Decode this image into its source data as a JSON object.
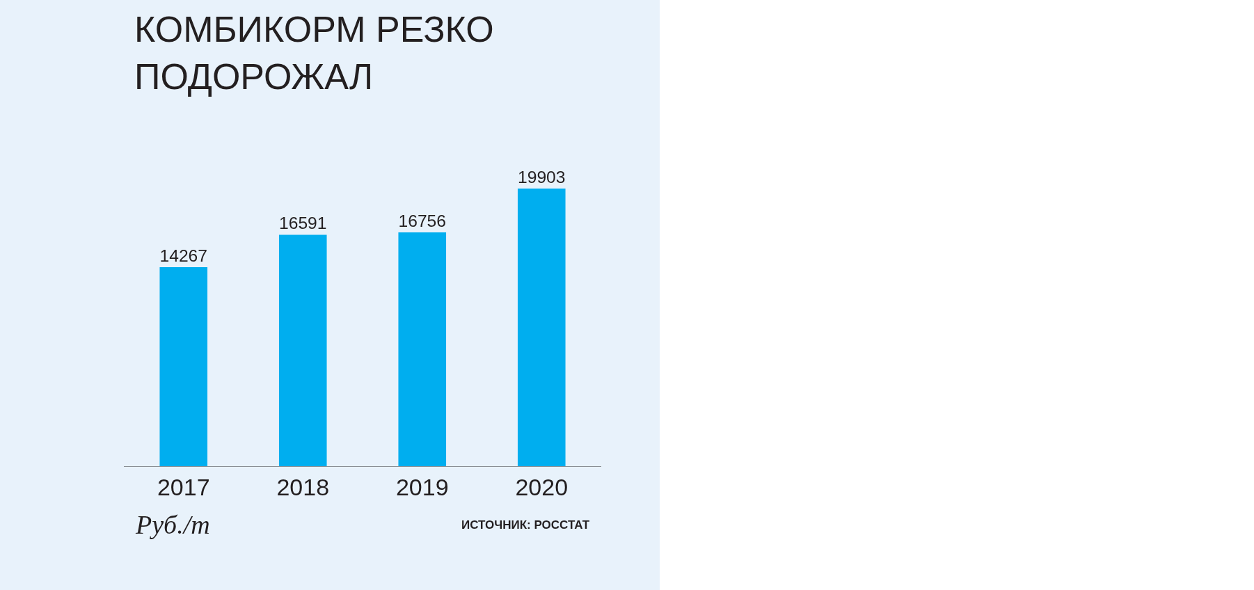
{
  "chart_data": {
    "type": "bar",
    "title": "КОМБИКОРМ РЕЗКО ПОДОРОЖАЛ",
    "categories": [
      "2017",
      "2018",
      "2019",
      "2020"
    ],
    "values": [
      14267,
      16591,
      16756,
      19903
    ],
    "color": "#00aeef",
    "data_labels": true,
    "grid": false,
    "legend": false,
    "tick_labels": "x",
    "annotations": [
      "Руб./т",
      "ИСТОЧНИК: РОССТАТ"
    ]
  }
}
